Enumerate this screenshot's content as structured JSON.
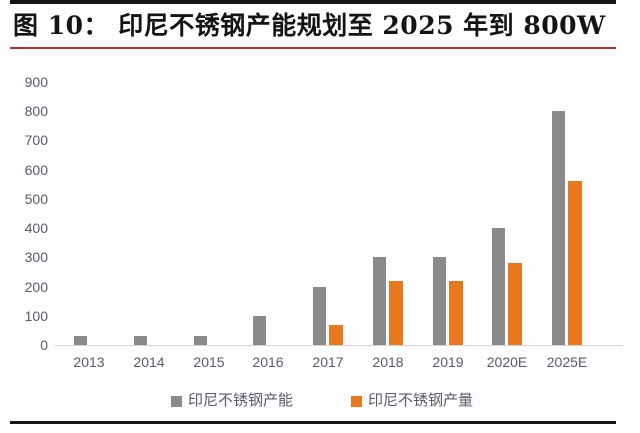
{
  "header": {
    "figure_label": "图 10：",
    "title": "图 10：  印尼不锈钢产能规划至 2025 年到 800W"
  },
  "colors": {
    "capacity_bar": "#8a8a8a",
    "production_bar": "#e8781e",
    "title_text": "#141414",
    "axis_text": "#5b5b63",
    "baseline": "#d4d4da",
    "accent_rule": "#b5302a",
    "frame_rule": "#161616",
    "background": "#fdfcfe"
  },
  "legend": {
    "items": [
      {
        "label": "印尼不锈钢产能",
        "color_key": "capacity_bar"
      },
      {
        "label": "印尼不锈钢产量",
        "color_key": "production_bar"
      }
    ]
  },
  "chart_data": {
    "type": "bar",
    "title": "印尼不锈钢产能规划至 2025 年到 800W",
    "categories": [
      "2013",
      "2014",
      "2015",
      "2016",
      "2017",
      "2018",
      "2019",
      "2020E",
      "2025E"
    ],
    "series": [
      {
        "name": "印尼不锈钢产能",
        "color_key": "capacity_bar",
        "values": [
          30,
          30,
          30,
          100,
          200,
          300,
          300,
          400,
          800
        ]
      },
      {
        "name": "印尼不锈钢产量",
        "color_key": "production_bar",
        "values": [
          0,
          0,
          0,
          0,
          70,
          220,
          220,
          280,
          560
        ]
      }
    ],
    "xlabel": "",
    "ylabel": "",
    "ylim": [
      0,
      900
    ],
    "ytick_step": 100,
    "ytick_labels": [
      "0",
      "100",
      "200",
      "300",
      "400",
      "500",
      "600",
      "700",
      "800",
      "900"
    ],
    "grid": false,
    "legend_position": "bottom"
  }
}
